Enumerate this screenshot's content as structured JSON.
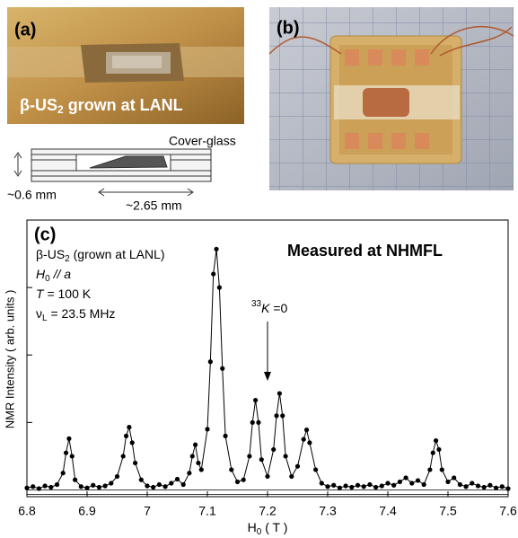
{
  "panel_a": {
    "label": "(a)",
    "caption": {
      "main": "β-US",
      "sub": "2",
      "rest": " grown at LANL"
    },
    "cover_glass": "Cover-glass",
    "thickness": "~0.6  mm",
    "length": "~2.65  mm"
  },
  "panel_b": {
    "label": "(b)"
  },
  "chart_data": {
    "type": "line",
    "label": "(c)",
    "sample": {
      "main": "β-US",
      "sub": "2",
      "rest": " (grown at LANL)"
    },
    "field": {
      "main": "H",
      "sub": "0",
      "rest": " // a"
    },
    "temperature": {
      "main": "T",
      "rest": " = 100 K"
    },
    "frequency": {
      "main": "ν",
      "sub": "L",
      "rest": " = 23.5 MHz"
    },
    "site": "Measured at NHMFL",
    "marker": {
      "sup": "33",
      "main": "K",
      "rest": " =0",
      "x": 7.2
    },
    "xlabel": {
      "main": "H",
      "sub": "0",
      "rest": " ( T )"
    },
    "ylabel": "NMR Intensity ( arb. units )",
    "color": "#000000",
    "xlim": [
      6.8,
      7.6
    ],
    "xticks": [
      6.8,
      6.9,
      7,
      7.1,
      7.2,
      7.3,
      7.4,
      7.5,
      7.6
    ],
    "ylim": [
      -0.1,
      4
    ],
    "yticks": [
      1,
      2,
      3
    ],
    "x": [
      6.8,
      6.81,
      6.82,
      6.83,
      6.84,
      6.85,
      6.86,
      6.865,
      6.87,
      6.875,
      6.88,
      6.89,
      6.9,
      6.91,
      6.92,
      6.93,
      6.94,
      6.95,
      6.96,
      6.965,
      6.97,
      6.975,
      6.98,
      6.99,
      7.0,
      7.01,
      7.02,
      7.03,
      7.04,
      7.05,
      7.06,
      7.07,
      7.075,
      7.08,
      7.085,
      7.09,
      7.1,
      7.105,
      7.11,
      7.115,
      7.12,
      7.125,
      7.13,
      7.14,
      7.15,
      7.16,
      7.17,
      7.175,
      7.18,
      7.185,
      7.19,
      7.2,
      7.21,
      7.215,
      7.22,
      7.225,
      7.23,
      7.24,
      7.25,
      7.26,
      7.265,
      7.27,
      7.28,
      7.29,
      7.3,
      7.31,
      7.32,
      7.33,
      7.34,
      7.35,
      7.36,
      7.37,
      7.38,
      7.39,
      7.4,
      7.41,
      7.42,
      7.43,
      7.44,
      7.45,
      7.46,
      7.47,
      7.475,
      7.48,
      7.485,
      7.49,
      7.5,
      7.51,
      7.52,
      7.53,
      7.54,
      7.55,
      7.56,
      7.57,
      7.58,
      7.59,
      7.6
    ],
    "values": [
      0.03,
      0.05,
      0.02,
      0.06,
      0.04,
      0.08,
      0.25,
      0.55,
      0.76,
      0.5,
      0.15,
      0.05,
      0.03,
      0.07,
      0.04,
      0.06,
      0.1,
      0.2,
      0.5,
      0.8,
      0.93,
      0.7,
      0.4,
      0.15,
      0.06,
      0.04,
      0.08,
      0.05,
      0.1,
      0.16,
      0.08,
      0.25,
      0.5,
      0.67,
      0.4,
      0.3,
      0.9,
      1.9,
      3.2,
      3.57,
      3.0,
      1.8,
      0.8,
      0.3,
      0.12,
      0.15,
      0.5,
      1.0,
      1.33,
      1.0,
      0.45,
      0.2,
      0.6,
      1.1,
      1.43,
      1.1,
      0.5,
      0.2,
      0.35,
      0.75,
      0.89,
      0.7,
      0.3,
      0.1,
      0.05,
      0.07,
      0.03,
      0.06,
      0.04,
      0.07,
      0.05,
      0.08,
      0.04,
      0.06,
      0.1,
      0.07,
      0.12,
      0.18,
      0.1,
      0.14,
      0.08,
      0.3,
      0.55,
      0.73,
      0.6,
      0.3,
      0.12,
      0.18,
      0.08,
      0.05,
      0.1,
      0.06,
      0.04,
      0.07,
      0.03,
      0.05,
      0.02
    ]
  }
}
